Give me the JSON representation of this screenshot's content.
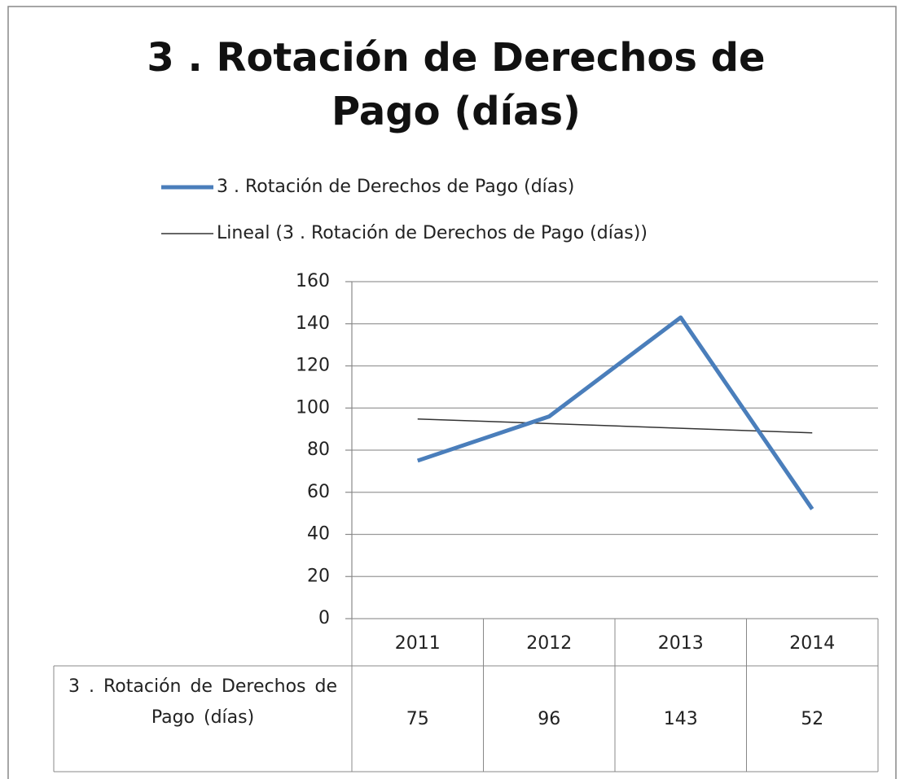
{
  "chart_data": {
    "type": "line",
    "title": "3 . Rotación de Derechos de Pago (días)",
    "categories": [
      "2011",
      "2012",
      "2013",
      "2014"
    ],
    "series": [
      {
        "name": "3 . Rotación de Derechos de Pago   (días)",
        "color": "#4a7ebb",
        "values": [
          75,
          96,
          143,
          52
        ]
      },
      {
        "name": "Lineal (3 . Rotación de Derechos de Pago   (días))",
        "color": "#333333",
        "values": [
          94.8,
          92.6,
          90.4,
          88.2
        ]
      }
    ],
    "ylim": [
      0,
      160
    ],
    "yticks": [
      0,
      20,
      40,
      60,
      80,
      100,
      120,
      140,
      160
    ],
    "grid": true,
    "legend": "top",
    "data_table": true
  }
}
